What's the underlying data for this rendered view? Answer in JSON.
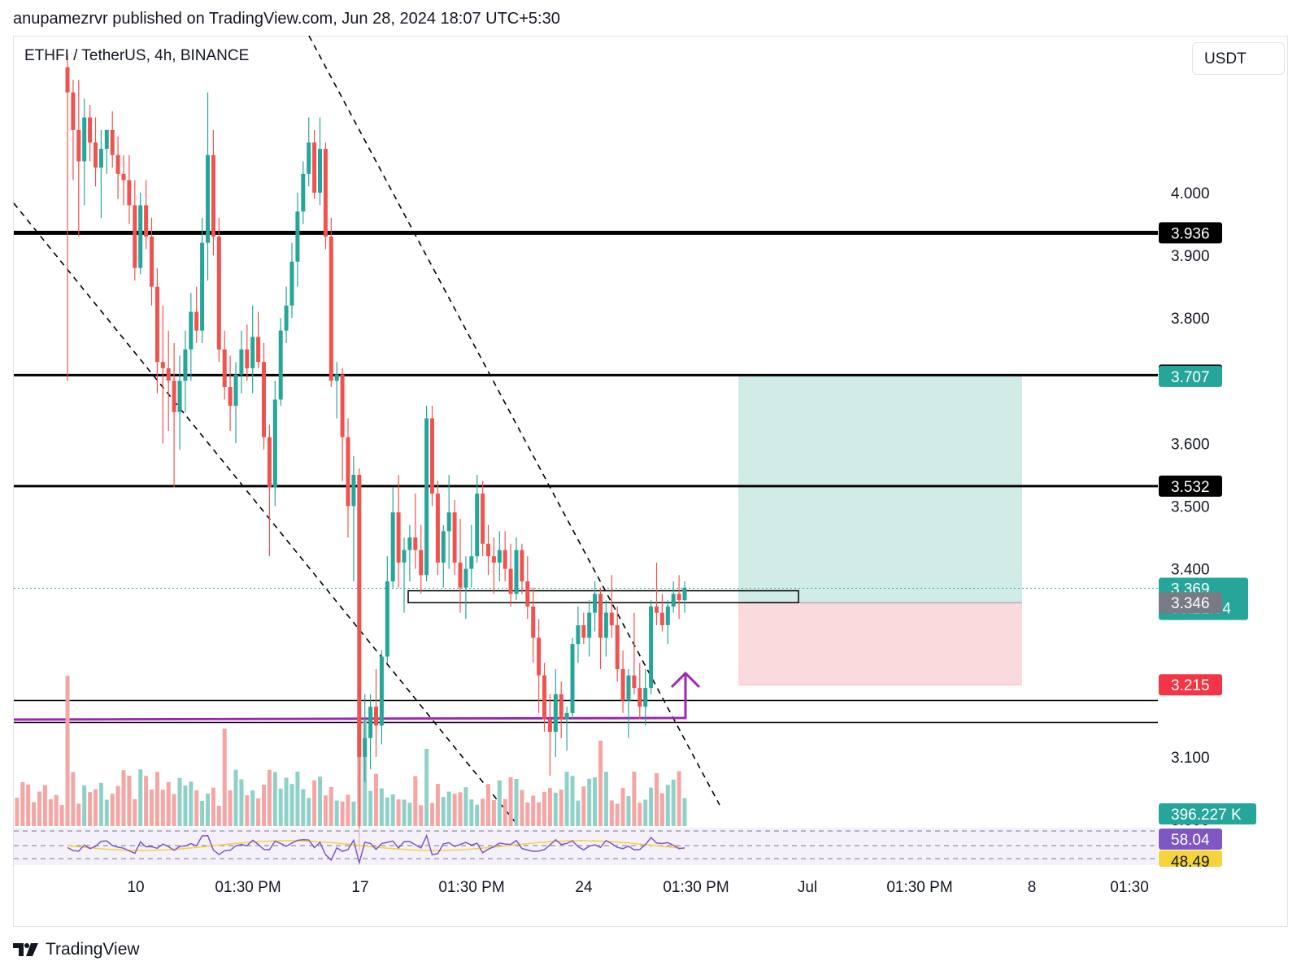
{
  "header": {
    "published_by": "anupamezrvr published on TradingView.com, Jun 28, 2024 18:07 UTC+5:30",
    "symbol_info": "ETHFI / TetherUS, 4h, BINANCE",
    "currency": "USDT"
  },
  "footer": {
    "brand": "TradingView",
    "logo": "tradingview-logo-icon"
  },
  "colors": {
    "up": "#26a69a",
    "down": "#ef5350",
    "target_zone": "#d1ece6",
    "stop_zone": "#fadadd",
    "trendline": "#9c27b0",
    "rsi": "#7e57c2",
    "rsi_ma": "#f5d33b"
  },
  "chart_data": {
    "type": "candlestick",
    "y_axis": {
      "min": 2.94,
      "max": 4.14,
      "ticks": [
        4.0,
        3.9,
        3.8,
        3.6,
        3.5,
        3.4,
        3.1,
        3.0
      ],
      "tick_labels": [
        "4.000",
        "3.900",
        "3.800",
        "3.600",
        "3.500",
        "3.400",
        "3.100",
        "3.000"
      ]
    },
    "x_axis": {
      "labels": [
        "10",
        "01:30 PM",
        "17",
        "01:30 PM",
        "24",
        "01:30 PM",
        "Jul",
        "01:30 PM",
        "8",
        "01:30"
      ]
    },
    "horizontal_levels": [
      3.936,
      3.709,
      3.532,
      3.19,
      3.155
    ],
    "price_tags": [
      {
        "value": "3.936",
        "price": 3.936,
        "color": "#000000"
      },
      {
        "value": "3.709",
        "price": 3.709,
        "color": "#000000"
      },
      {
        "value": "3.707",
        "price": 3.707,
        "color": "#26a69a"
      },
      {
        "value": "3.532",
        "price": 3.532,
        "color": "#000000"
      },
      {
        "value": "3.369",
        "price": 3.369,
        "color": "#26a69a",
        "sub": "03:22:04"
      },
      {
        "value": "3.346",
        "price": 3.346,
        "color": "#787b86"
      },
      {
        "value": "3.215",
        "price": 3.215,
        "color": "#f23645"
      }
    ],
    "position": {
      "entry": 3.346,
      "target": 3.707,
      "stop": 3.215
    },
    "last_price": 3.369,
    "countdown": "03:22:04",
    "volume": {
      "last": "396.227 K"
    },
    "rsi": {
      "value": "58.04",
      "ma": "48.49"
    },
    "candles": [
      [
        4.2,
        4.22,
        3.7,
        4.16
      ],
      [
        4.16,
        4.18,
        4.02,
        4.1
      ],
      [
        4.1,
        4.18,
        3.93,
        4.05
      ],
      [
        4.05,
        4.15,
        3.98,
        4.12
      ],
      [
        4.12,
        4.14,
        4.05,
        4.08
      ],
      [
        4.08,
        4.12,
        4.01,
        4.04
      ],
      [
        4.04,
        4.1,
        3.96,
        4.07
      ],
      [
        4.07,
        4.1,
        4.03,
        4.1
      ],
      [
        4.1,
        4.13,
        4.04,
        4.06
      ],
      [
        4.06,
        4.09,
        3.99,
        4.03
      ],
      [
        4.03,
        4.06,
        3.98,
        4.02
      ],
      [
        4.02,
        4.06,
        3.95,
        3.98
      ],
      [
        3.98,
        4.02,
        3.86,
        3.88
      ],
      [
        3.88,
        4.0,
        3.87,
        3.98
      ],
      [
        3.98,
        4.02,
        3.91,
        3.93
      ],
      [
        3.93,
        3.96,
        3.82,
        3.85
      ],
      [
        3.85,
        3.88,
        3.68,
        3.73
      ],
      [
        3.73,
        3.82,
        3.6,
        3.72
      ],
      [
        3.72,
        3.78,
        3.62,
        3.7
      ],
      [
        3.7,
        3.76,
        3.53,
        3.65
      ],
      [
        3.65,
        3.74,
        3.59,
        3.7
      ],
      [
        3.7,
        3.78,
        3.65,
        3.75
      ],
      [
        3.75,
        3.84,
        3.7,
        3.81
      ],
      [
        3.81,
        3.85,
        3.76,
        3.78
      ],
      [
        3.78,
        3.96,
        3.76,
        3.92
      ],
      [
        3.92,
        4.16,
        3.86,
        4.06
      ],
      [
        4.06,
        4.1,
        3.9,
        3.93
      ],
      [
        3.93,
        3.96,
        3.73,
        3.75
      ],
      [
        3.75,
        3.78,
        3.67,
        3.69
      ],
      [
        3.69,
        3.74,
        3.62,
        3.66
      ],
      [
        3.66,
        3.73,
        3.6,
        3.71
      ],
      [
        3.71,
        3.78,
        3.68,
        3.75
      ],
      [
        3.75,
        3.79,
        3.7,
        3.72
      ],
      [
        3.72,
        3.82,
        3.68,
        3.77
      ],
      [
        3.77,
        3.81,
        3.72,
        3.73
      ],
      [
        3.73,
        3.76,
        3.59,
        3.61
      ],
      [
        3.61,
        3.63,
        3.42,
        3.53
      ],
      [
        3.53,
        3.7,
        3.5,
        3.67
      ],
      [
        3.67,
        3.8,
        3.66,
        3.78
      ],
      [
        3.78,
        3.85,
        3.76,
        3.82
      ],
      [
        3.82,
        3.92,
        3.8,
        3.89
      ],
      [
        3.89,
        4.0,
        3.85,
        3.97
      ],
      [
        3.97,
        4.05,
        3.95,
        4.03
      ],
      [
        4.03,
        4.12,
        4.01,
        4.08
      ],
      [
        4.08,
        4.1,
        3.99,
        4.0
      ],
      [
        4.0,
        4.12,
        3.98,
        4.07
      ],
      [
        4.07,
        4.08,
        3.91,
        3.93
      ],
      [
        3.93,
        3.96,
        3.69,
        3.7
      ],
      [
        3.7,
        3.73,
        3.64,
        3.71
      ],
      [
        3.71,
        3.72,
        3.54,
        3.61
      ],
      [
        3.61,
        3.64,
        3.45,
        3.5
      ],
      [
        3.5,
        3.58,
        3.38,
        3.55
      ],
      [
        3.55,
        3.56,
        2.95,
        3.1
      ],
      [
        3.1,
        3.2,
        3.06,
        3.13
      ],
      [
        3.13,
        3.2,
        3.08,
        3.18
      ],
      [
        3.18,
        3.24,
        3.1,
        3.15
      ],
      [
        3.15,
        3.27,
        3.12,
        3.26
      ],
      [
        3.26,
        3.42,
        3.25,
        3.38
      ],
      [
        3.38,
        3.53,
        3.37,
        3.49
      ],
      [
        3.49,
        3.55,
        3.37,
        3.41
      ],
      [
        3.41,
        3.45,
        3.33,
        3.43
      ],
      [
        3.43,
        3.47,
        3.38,
        3.45
      ],
      [
        3.45,
        3.52,
        3.4,
        3.43
      ],
      [
        3.43,
        3.47,
        3.36,
        3.39
      ],
      [
        3.39,
        3.66,
        3.38,
        3.64
      ],
      [
        3.64,
        3.66,
        3.5,
        3.52
      ],
      [
        3.52,
        3.54,
        3.39,
        3.41
      ],
      [
        3.41,
        3.47,
        3.37,
        3.46
      ],
      [
        3.46,
        3.55,
        3.4,
        3.49
      ],
      [
        3.49,
        3.51,
        3.39,
        3.41
      ],
      [
        3.41,
        3.48,
        3.33,
        3.37
      ],
      [
        3.37,
        3.42,
        3.32,
        3.4
      ],
      [
        3.4,
        3.47,
        3.37,
        3.42
      ],
      [
        3.42,
        3.55,
        3.41,
        3.52
      ],
      [
        3.52,
        3.54,
        3.42,
        3.44
      ],
      [
        3.44,
        3.47,
        3.39,
        3.42
      ],
      [
        3.42,
        3.45,
        3.36,
        3.41
      ],
      [
        3.41,
        3.46,
        3.38,
        3.43
      ],
      [
        3.43,
        3.46,
        3.38,
        3.4
      ],
      [
        3.4,
        3.44,
        3.34,
        3.36
      ],
      [
        3.36,
        3.45,
        3.35,
        3.43
      ],
      [
        3.43,
        3.44,
        3.36,
        3.38
      ],
      [
        3.38,
        3.42,
        3.32,
        3.34
      ],
      [
        3.34,
        3.37,
        3.25,
        3.29
      ],
      [
        3.29,
        3.32,
        3.17,
        3.23
      ],
      [
        3.23,
        3.25,
        3.14,
        3.16
      ],
      [
        3.16,
        3.2,
        3.07,
        3.14
      ],
      [
        3.14,
        3.24,
        3.1,
        3.2
      ],
      [
        3.2,
        3.22,
        3.13,
        3.16
      ],
      [
        3.16,
        3.18,
        3.11,
        3.17
      ],
      [
        3.17,
        3.29,
        3.16,
        3.28
      ],
      [
        3.28,
        3.34,
        3.25,
        3.31
      ],
      [
        3.31,
        3.33,
        3.28,
        3.29
      ],
      [
        3.29,
        3.35,
        3.26,
        3.33
      ],
      [
        3.33,
        3.38,
        3.3,
        3.36
      ],
      [
        3.36,
        3.37,
        3.24,
        3.29
      ],
      [
        3.29,
        3.35,
        3.26,
        3.33
      ],
      [
        3.33,
        3.39,
        3.29,
        3.31
      ],
      [
        3.31,
        3.34,
        3.22,
        3.24
      ],
      [
        3.24,
        3.27,
        3.17,
        3.19
      ],
      [
        3.19,
        3.24,
        3.13,
        3.23
      ],
      [
        3.23,
        3.33,
        3.2,
        3.21
      ],
      [
        3.21,
        3.25,
        3.16,
        3.18
      ],
      [
        3.18,
        3.24,
        3.15,
        3.21
      ],
      [
        3.21,
        3.35,
        3.2,
        3.34
      ],
      [
        3.34,
        3.41,
        3.31,
        3.33
      ],
      [
        3.33,
        3.36,
        3.3,
        3.31
      ],
      [
        3.31,
        3.35,
        3.28,
        3.34
      ],
      [
        3.34,
        3.38,
        3.33,
        3.36
      ],
      [
        3.36,
        3.39,
        3.32,
        3.35
      ],
      [
        3.35,
        3.38,
        3.33,
        3.37
      ]
    ]
  }
}
